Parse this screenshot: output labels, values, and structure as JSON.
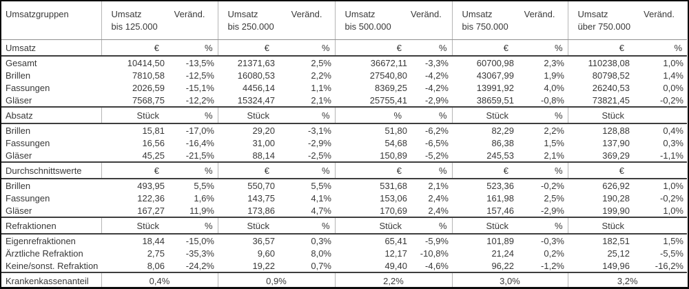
{
  "colors": {
    "outer_border": "#0c0c0c",
    "dark_rule": "#3d3d3d",
    "header_rule": "#8f8f8f",
    "tick_rule": "#b5b5b5",
    "text": "#383838",
    "background": "#ffffff"
  },
  "table": {
    "corner_label": "Umsatzgruppen",
    "column_groups": [
      {
        "metric_label": "Umsatz",
        "range_label": "bis 125.000",
        "change_label": "Veränd."
      },
      {
        "metric_label": "Umsatz",
        "range_label": "bis 250.000",
        "change_label": "Veränd."
      },
      {
        "metric_label": "Umsatz",
        "range_label": "bis 500.000",
        "change_label": "Veränd."
      },
      {
        "metric_label": "Umsatz",
        "range_label": "bis 750.000",
        "change_label": "Veränd."
      },
      {
        "metric_label": "Umsatz",
        "range_label": "über 750.000",
        "change_label": "Veränd."
      }
    ],
    "sections": [
      {
        "name": "Umsatz",
        "units": [
          "€",
          "%",
          "€",
          "%",
          "€",
          "%",
          "€",
          "%",
          "€",
          "%"
        ],
        "rows": [
          {
            "label": "Gesamt",
            "values": [
              "10414,50",
              "-13,5%",
              "21371,63",
              "2,5%",
              "36672,11",
              "-3,3%",
              "60700,98",
              "2,3%",
              "110238,08",
              "1,0%"
            ]
          },
          {
            "label": "Brillen",
            "values": [
              "7810,58",
              "-12,5%",
              "16080,53",
              "2,2%",
              "27540,80",
              "-4,2%",
              "43067,99",
              "1,9%",
              "80798,52",
              "1,4%"
            ]
          },
          {
            "label": "Fassungen",
            "values": [
              "2026,59",
              "-15,1%",
              "4456,14",
              "1,1%",
              "8369,25",
              "-4,2%",
              "13991,92",
              "4,0%",
              "26240,53",
              "0,0%"
            ]
          },
          {
            "label": "Gläser",
            "values": [
              "7568,75",
              "-12,2%",
              "15324,47",
              "2,1%",
              "25755,41",
              "-2,9%",
              "38659,51",
              "-0,8%",
              "73821,45",
              "-0,2%"
            ]
          }
        ]
      },
      {
        "name": "Absatz",
        "units": [
          "Stück",
          "%",
          "Stück",
          "%",
          "%",
          "%",
          "Stück",
          "%",
          "Stück",
          ""
        ],
        "rows": [
          {
            "label": "Brillen",
            "values": [
              "15,81",
              "-17,0%",
              "29,20",
              "-3,1%",
              "51,80",
              "-6,2%",
              "82,29",
              "2,2%",
              "128,88",
              "0,4%"
            ]
          },
          {
            "label": "Fassungen",
            "values": [
              "16,56",
              "-16,4%",
              "31,00",
              "-2,9%",
              "54,68",
              "-6,5%",
              "86,38",
              "1,5%",
              "137,90",
              "0,3%"
            ]
          },
          {
            "label": "Gläser",
            "values": [
              "45,25",
              "-21,5%",
              "88,14",
              "-2,5%",
              "150,89",
              "-5,2%",
              "245,53",
              "2,1%",
              "369,29",
              "-1,1%"
            ]
          }
        ]
      },
      {
        "name": "Durchschnittswerte",
        "units": [
          "€",
          "%",
          "€",
          "%",
          "€",
          "%",
          "€",
          "%",
          "€",
          ""
        ],
        "rows": [
          {
            "label": "Brillen",
            "values": [
              "493,95",
              "5,5%",
              "550,70",
              "5,5%",
              "531,68",
              "2,1%",
              "523,36",
              "-0,2%",
              "626,92",
              "1,0%"
            ]
          },
          {
            "label": "Fassungen",
            "values": [
              "122,36",
              "1,6%",
              "143,75",
              "4,1%",
              "153,06",
              "2,4%",
              "161,98",
              "2,5%",
              "190,28",
              "-0,2%"
            ]
          },
          {
            "label": "Gläser",
            "values": [
              "167,27",
              "11,9%",
              "173,86",
              "4,7%",
              "170,69",
              "2,4%",
              "157,46",
              "-2,9%",
              "199,90",
              "1,0%"
            ]
          }
        ]
      },
      {
        "name": "Refraktionen",
        "units": [
          "Stück",
          "%",
          "Stück",
          "%",
          "Stück",
          "%",
          "Stück",
          "%",
          "Stück",
          ""
        ],
        "rows": [
          {
            "label": "Eigenrefraktionen",
            "values": [
              "18,44",
              "-15,0%",
              "36,57",
              "0,3%",
              "65,41",
              "-5,9%",
              "101,89",
              "-0,3%",
              "182,51",
              "1,5%"
            ]
          },
          {
            "label": "Ärztliche Refraktion",
            "values": [
              "2,75",
              "-35,3%",
              "9,60",
              "8,0%",
              "12,17",
              "-10,8%",
              "21,24",
              "0,2%",
              "25,12",
              "-5,5%"
            ]
          },
          {
            "label": "Keine/sonst. Refraktion",
            "values": [
              "8,06",
              "-24,2%",
              "19,22",
              "0,7%",
              "49,40",
              "-4,6%",
              "96,22",
              "-1,2%",
              "149,96",
              "-16,2%"
            ]
          }
        ]
      }
    ],
    "footer": {
      "label": "Krankenkassenanteil",
      "values": [
        "0,4%",
        "0,9%",
        "2,2%",
        "3,0%",
        "3,2%"
      ]
    }
  }
}
